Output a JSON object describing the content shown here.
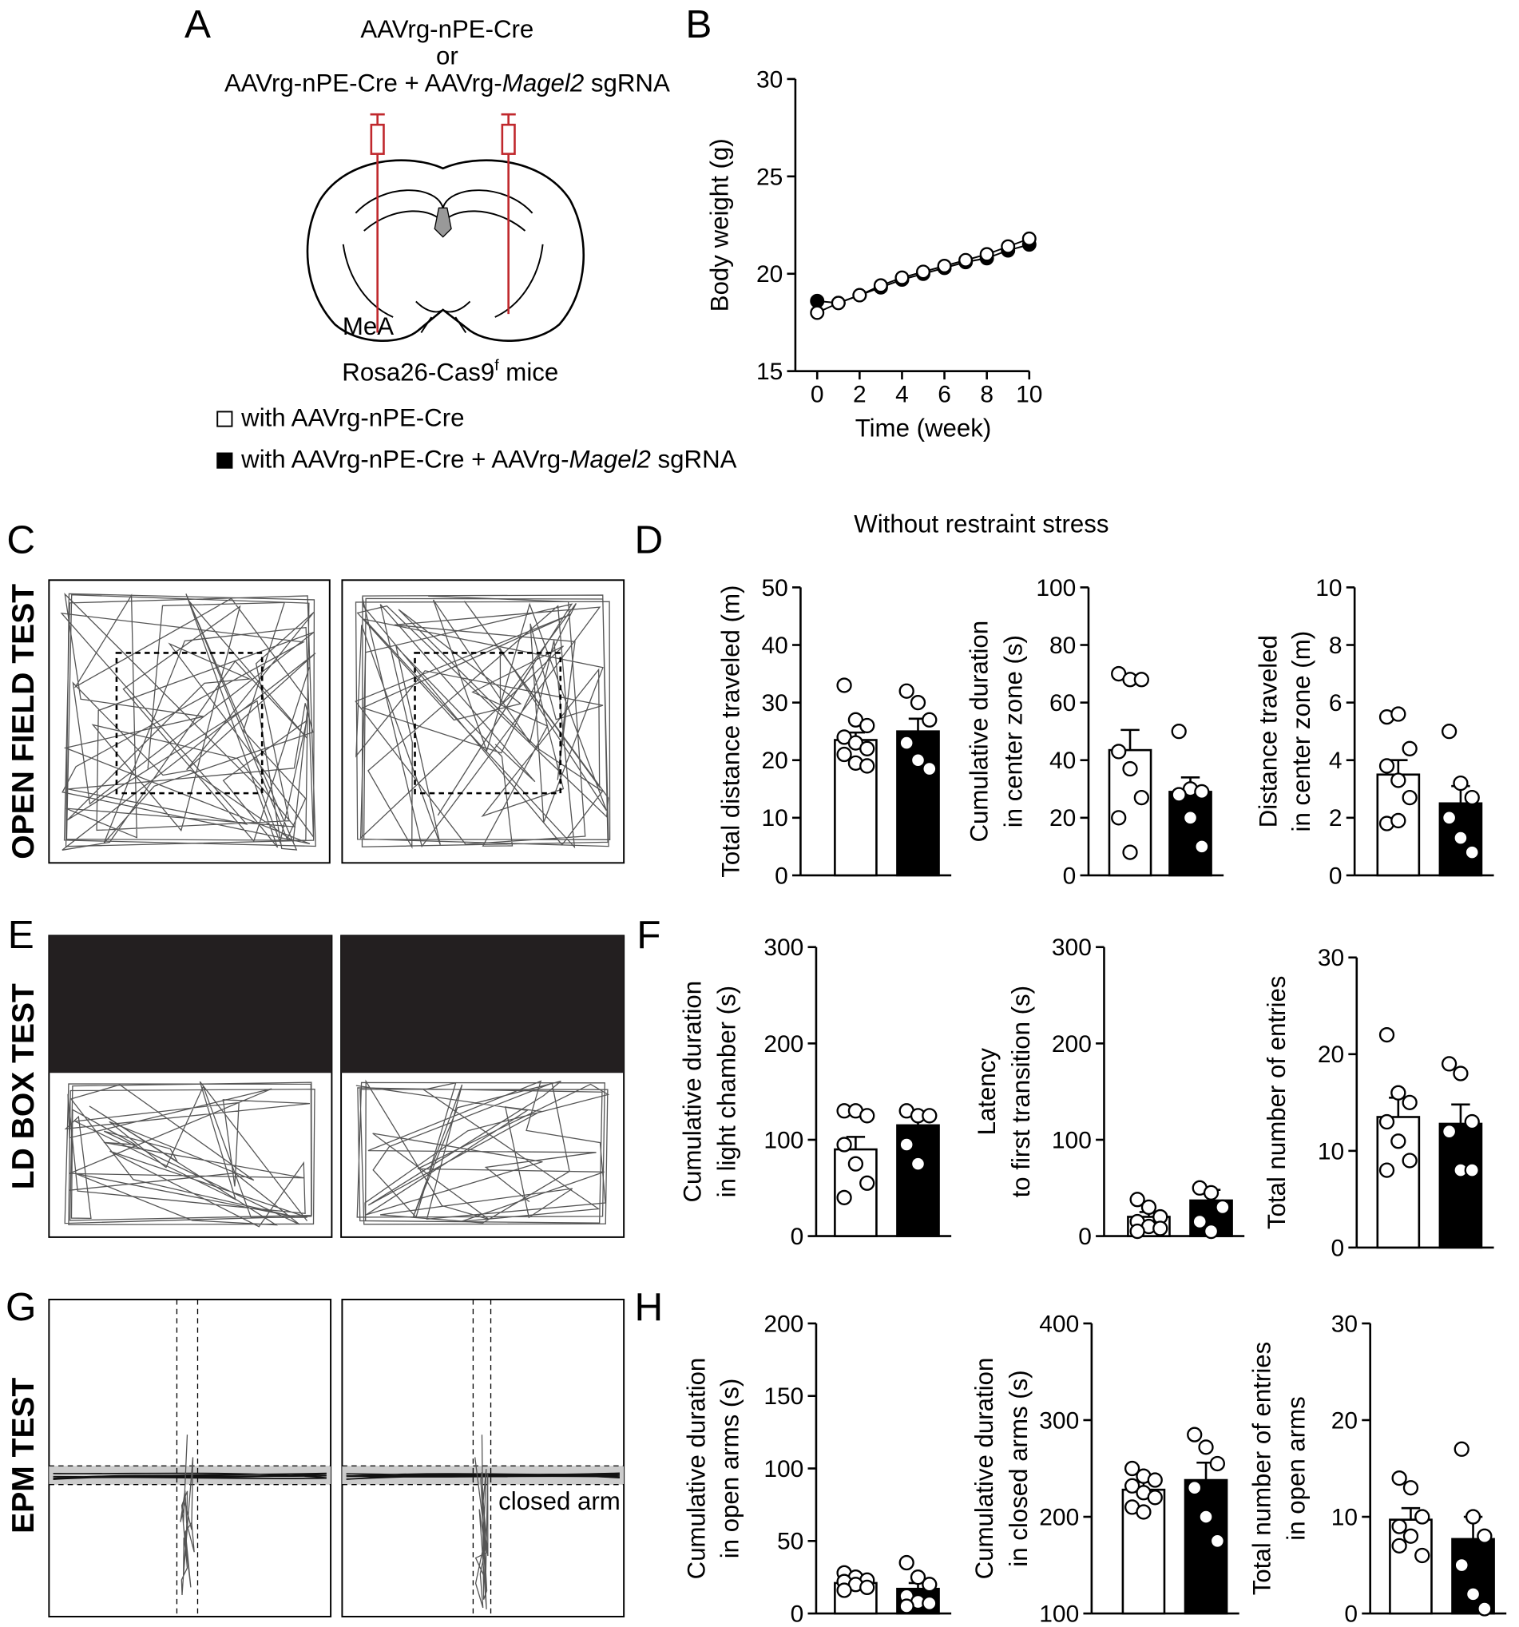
{
  "panel_labels": [
    "A",
    "B",
    "C",
    "D",
    "E",
    "F",
    "G",
    "H"
  ],
  "test_labels": [
    "OPEN FIELD TEST",
    "LD BOX TEST",
    "EPM TEST"
  ],
  "diagram": {
    "injection_line1": "AAVrg-nPE-Cre",
    "injection_or": "or",
    "injection_line2": [
      "AAVrg-nPE-Cre + AAVrg-",
      "Magel2",
      " sgRNA"
    ],
    "region": "MeA",
    "mouse": [
      "Rosa26-Cas9",
      "f",
      " mice"
    ]
  },
  "legend": [
    {
      "color": "#ffffff",
      "parts": [
        "with AAVrg-nPE-Cre"
      ]
    },
    {
      "color": "#000000",
      "parts": [
        "with AAVrg-nPE-Cre + AAVrg-",
        "Magel2",
        " sgRNA"
      ]
    }
  ],
  "section_title": "Without restraint stress",
  "epm_annotation": "closed arm",
  "chart_data": [
    {
      "type": "line",
      "ylabel": "Body weight (g)",
      "xlabel": "Time (week)",
      "x": [
        0,
        1,
        2,
        3,
        4,
        5,
        6,
        7,
        8,
        9,
        10
      ],
      "xlim": [
        0,
        10
      ],
      "xticks": [
        0,
        2,
        4,
        6,
        8,
        10
      ],
      "ylim": [
        15,
        30
      ],
      "yticks": [
        15,
        20,
        25,
        30
      ],
      "series": [
        {
          "color": "#ffffff",
          "values": [
            18.0,
            18.5,
            18.9,
            19.4,
            19.8,
            20.1,
            20.4,
            20.7,
            21.0,
            21.4,
            21.8
          ]
        },
        {
          "color": "#000000",
          "values": [
            18.6,
            18.5,
            18.9,
            19.3,
            19.7,
            20.0,
            20.3,
            20.6,
            20.8,
            21.2,
            21.5
          ]
        }
      ]
    },
    {
      "type": "bar",
      "ylabel": [
        "Total distance traveled (m)"
      ],
      "ylim": [
        0,
        50
      ],
      "yticks": [
        0,
        10,
        20,
        30,
        40,
        50
      ],
      "groups": [
        {
          "color": "#ffffff",
          "mean": 23.5,
          "error": 1.3,
          "points": [
            33,
            27,
            26,
            24,
            23,
            22,
            21,
            19.5,
            19
          ]
        },
        {
          "color": "#000000",
          "mean": 25,
          "error": 2.2,
          "points": [
            32,
            30,
            27,
            23,
            20,
            18.5
          ]
        }
      ]
    },
    {
      "type": "bar",
      "ylabel": [
        "Cumulative duration",
        "in  center zone (s)"
      ],
      "ylim": [
        0,
        100
      ],
      "yticks": [
        0,
        20,
        40,
        60,
        80,
        100
      ],
      "groups": [
        {
          "color": "#ffffff",
          "mean": 43.5,
          "error": 7,
          "points": [
            70,
            68,
            68,
            43,
            37,
            27,
            20,
            8
          ]
        },
        {
          "color": "#000000",
          "mean": 29,
          "error": 5,
          "points": [
            50,
            30,
            29,
            28,
            20,
            10
          ]
        }
      ]
    },
    {
      "type": "bar",
      "ylabel": [
        "Distance traveled",
        "in center zone (m)"
      ],
      "ylim": [
        0,
        10
      ],
      "yticks": [
        0,
        2,
        4,
        6,
        8,
        10
      ],
      "groups": [
        {
          "color": "#ffffff",
          "mean": 3.5,
          "error": 0.5,
          "points": [
            5.5,
            5.6,
            4.4,
            3.8,
            3.3,
            2.7,
            1.8,
            1.9
          ]
        },
        {
          "color": "#000000",
          "mean": 2.5,
          "error": 0.6,
          "points": [
            5.0,
            3.2,
            2.7,
            2.0,
            1.3,
            0.8
          ]
        }
      ]
    },
    {
      "type": "bar",
      "ylabel": [
        "Cumulative duration",
        "in light chamber (s)"
      ],
      "ylim": [
        0,
        300
      ],
      "yticks": [
        0,
        100,
        200,
        300
      ],
      "groups": [
        {
          "color": "#ffffff",
          "mean": 90,
          "error": 13,
          "points": [
            130,
            130,
            125,
            95,
            75,
            55,
            40
          ]
        },
        {
          "color": "#000000",
          "mean": 115,
          "error": 10,
          "points": [
            130,
            125,
            125,
            95,
            75
          ]
        }
      ]
    },
    {
      "type": "bar",
      "ylabel": [
        "Latency",
        "to first transition (s)"
      ],
      "ylim": [
        0,
        300
      ],
      "yticks": [
        0,
        100,
        200,
        300
      ],
      "groups": [
        {
          "color": "#ffffff",
          "mean": 20,
          "error": 5,
          "points": [
            38,
            30,
            20,
            15,
            10,
            8,
            5
          ]
        },
        {
          "color": "#000000",
          "mean": 37,
          "error": 11,
          "points": [
            50,
            45,
            30,
            15,
            5
          ]
        }
      ]
    },
    {
      "type": "bar",
      "ylabel": [
        "Total number of entries"
      ],
      "ylim": [
        0,
        30
      ],
      "yticks": [
        0,
        10,
        20,
        30
      ],
      "groups": [
        {
          "color": "#ffffff",
          "mean": 13.5,
          "error": 2,
          "points": [
            22,
            16,
            15,
            13,
            11,
            9,
            8
          ]
        },
        {
          "color": "#000000",
          "mean": 12.8,
          "error": 2,
          "points": [
            19,
            18,
            13,
            12,
            8,
            8
          ]
        }
      ]
    },
    {
      "type": "bar",
      "ylabel": [
        "Cumulative duration",
        "in open arms (s)"
      ],
      "ylim": [
        0,
        200
      ],
      "yticks": [
        0,
        50,
        100,
        150,
        200
      ],
      "groups": [
        {
          "color": "#ffffff",
          "mean": 21,
          "error": 2.5,
          "points": [
            28,
            25,
            23,
            22,
            20,
            18,
            16
          ]
        },
        {
          "color": "#000000",
          "mean": 17,
          "error": 4,
          "points": [
            35,
            25,
            20,
            12,
            8,
            7,
            5
          ]
        }
      ]
    },
    {
      "type": "bar",
      "ylabel": [
        "Cumulative duration",
        "in closed arms (s)"
      ],
      "ylim": [
        100,
        400
      ],
      "yticks": [
        100,
        200,
        300,
        400
      ],
      "groups": [
        {
          "color": "#ffffff",
          "mean": 228,
          "error": 8,
          "points": [
            250,
            242,
            238,
            232,
            225,
            220,
            210,
            205
          ]
        },
        {
          "color": "#000000",
          "mean": 238,
          "error": 18,
          "points": [
            285,
            272,
            255,
            230,
            200,
            175
          ]
        }
      ]
    },
    {
      "type": "bar",
      "ylabel": [
        "Total number of entries",
        "in open arms"
      ],
      "ylim": [
        0,
        30
      ],
      "yticks": [
        0,
        10,
        20,
        30
      ],
      "groups": [
        {
          "color": "#ffffff",
          "mean": 9.7,
          "error": 1.2,
          "points": [
            14,
            13,
            10,
            9,
            8,
            6,
            7
          ]
        },
        {
          "color": "#000000",
          "mean": 7.7,
          "error": 2.3,
          "points": [
            17,
            10,
            8,
            5,
            2,
            0.5
          ]
        }
      ]
    }
  ]
}
